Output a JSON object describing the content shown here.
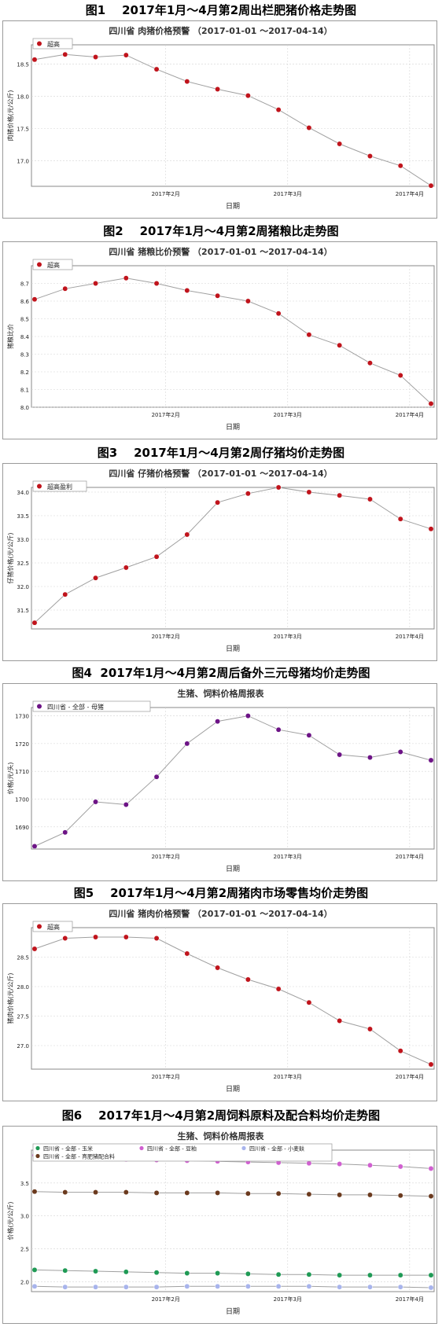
{
  "figures": [
    {
      "label": "图1",
      "caption": "2017年1月～4月第2周出栏肥猪价格走势图",
      "chart": {
        "type": "line",
        "title": "四川省 肉猪价格预警 （2017-01-01 ～2017-04-14）",
        "xlabel": "日期",
        "ylabel": "肉猪价格(元/公斤)",
        "x_ticks": [
          "2017年2月",
          "2017年3月",
          "2017年4月"
        ],
        "ylim": [
          16.6,
          18.8
        ],
        "y_ticks": [
          "17.0",
          "17.5",
          "18.0",
          "18.5"
        ],
        "grid": true,
        "legend": "top-left",
        "series": [
          {
            "name": "超高",
            "color": "#c0141c",
            "values": [
              18.57,
              18.65,
              18.61,
              18.64,
              18.42,
              18.23,
              18.11,
              18.01,
              17.79,
              17.51,
              17.26,
              17.07,
              16.92,
              16.61
            ]
          }
        ]
      }
    },
    {
      "label": "图2",
      "caption": "2017年1月～4月第2周猪粮比走势图",
      "chart": {
        "type": "line",
        "title": "四川省 猪粮比价预警 （2017-01-01 ～2017-04-14）",
        "xlabel": "日期",
        "ylabel": "猪粮比价",
        "x_ticks": [
          "2017年2月",
          "2017年3月",
          "2017年4月"
        ],
        "ylim": [
          8.0,
          8.8
        ],
        "y_ticks": [
          "8.0",
          "8.1",
          "8.2",
          "8.3",
          "8.4",
          "8.5",
          "8.6",
          "8.7"
        ],
        "grid": true,
        "legend": "top-left",
        "series": [
          {
            "name": "超高",
            "color": "#c0141c",
            "values": [
              8.61,
              8.67,
              8.7,
              8.73,
              8.7,
              8.66,
              8.63,
              8.6,
              8.53,
              8.41,
              8.35,
              8.25,
              8.18,
              8.02
            ]
          }
        ]
      }
    },
    {
      "label": "图3",
      "caption": "2017年1月～4月第2周仔猪均价走势图",
      "chart": {
        "type": "line",
        "title": "四川省 仔猪价格预警 （2017-01-01 ～2017-04-14）",
        "xlabel": "日期",
        "ylabel": "仔猪价格(元/公斤)",
        "x_ticks": [
          "2017年2月",
          "2017年3月",
          "2017年4月"
        ],
        "ylim": [
          31.1,
          34.1
        ],
        "y_ticks": [
          "31.5",
          "32.0",
          "32.5",
          "33.0",
          "33.5",
          "34.0"
        ],
        "grid": true,
        "legend": "top-left",
        "series": [
          {
            "name": "超高盈利",
            "color": "#c0141c",
            "values": [
              31.23,
              31.83,
              32.18,
              32.4,
              32.63,
              33.1,
              33.78,
              33.97,
              34.1,
              34.0,
              33.93,
              33.85,
              33.43,
              33.22
            ]
          }
        ]
      }
    },
    {
      "label": "图4",
      "caption": "2017年1月～4月第2周后备外三元母猪均价走势图",
      "chart": {
        "type": "line",
        "title": "生猪、饲料价格周报表",
        "xlabel": "日期",
        "ylabel": "价格(元/头)",
        "x_ticks": [
          "2017年2月",
          "2017年3月",
          "2017年4月"
        ],
        "ylim": [
          1682,
          1733
        ],
        "y_ticks": [
          "1690",
          "1700",
          "1710",
          "1720",
          "1730"
        ],
        "grid": true,
        "legend": "top-left",
        "series": [
          {
            "name": "四川省 - 全部 - 母猪",
            "color": "#6d1486",
            "values": [
              1683,
              1688,
              1699,
              1698,
              1708,
              1720,
              1728,
              1730,
              1725,
              1723,
              1716,
              1715,
              1717,
              1714
            ]
          }
        ]
      }
    },
    {
      "label": "图5",
      "caption": "2017年1月～4月第2周猪肉市场零售均价走势图",
      "chart": {
        "type": "line",
        "title": "四川省 猪肉价格预警 （2017-01-01 ～2017-04-14）",
        "xlabel": "日期",
        "ylabel": "猪肉价格(元/公斤)",
        "x_ticks": [
          "2017年2月",
          "2017年3月",
          "2017年4月"
        ],
        "ylim": [
          26.6,
          29.0
        ],
        "y_ticks": [
          "27.0",
          "27.5",
          "28.0",
          "28.5"
        ],
        "grid": true,
        "legend": "top-left",
        "series": [
          {
            "name": "超高",
            "color": "#c0141c",
            "values": [
              28.64,
              28.82,
              28.84,
              28.84,
              28.82,
              28.56,
              28.32,
              28.12,
              27.96,
              27.73,
              27.42,
              27.28,
              26.91,
              26.68
            ]
          }
        ]
      }
    },
    {
      "label": "图6",
      "caption": "2017年1月～4月第2周饲料原料及配合料均价走势图",
      "chart": {
        "type": "line",
        "title": "生猪、饲料价格周报表",
        "xlabel": "日期",
        "ylabel": "价格(元/公斤)",
        "x_ticks": [
          "2017年2月",
          "2017年3月",
          "2017年4月"
        ],
        "ylim": [
          1.85,
          4.0
        ],
        "y_ticks": [
          "2.0",
          "2.5",
          "3.0",
          "3.5"
        ],
        "grid": true,
        "legend": "top",
        "series": [
          {
            "name": "四川省 - 全部 - 玉米",
            "color": "#1f9a55",
            "values": [
              2.18,
              2.17,
              2.16,
              2.15,
              2.14,
              2.13,
              2.13,
              2.12,
              2.11,
              2.11,
              2.1,
              2.1,
              2.1,
              2.1
            ]
          },
          {
            "name": "四川省 - 全部 - 豆粕",
            "color": "#d060d0",
            "values": [
              3.92,
              3.9,
              3.88,
              3.86,
              3.85,
              3.84,
              3.83,
              3.82,
              3.81,
              3.8,
              3.79,
              3.77,
              3.75,
              3.72
            ]
          },
          {
            "name": "四川省 - 全部 - 小麦麸",
            "color": "#a8b4ec",
            "values": [
              1.93,
              1.92,
              1.92,
              1.92,
              1.92,
              1.93,
              1.93,
              1.93,
              1.93,
              1.93,
              1.92,
              1.92,
              1.92,
              1.91
            ]
          },
          {
            "name": "四川省 - 全部 - 育肥猪配合料",
            "color": "#6b3a1e",
            "values": [
              3.37,
              3.36,
              3.36,
              3.36,
              3.35,
              3.35,
              3.35,
              3.34,
              3.34,
              3.33,
              3.32,
              3.32,
              3.31,
              3.3
            ]
          }
        ]
      }
    }
  ]
}
